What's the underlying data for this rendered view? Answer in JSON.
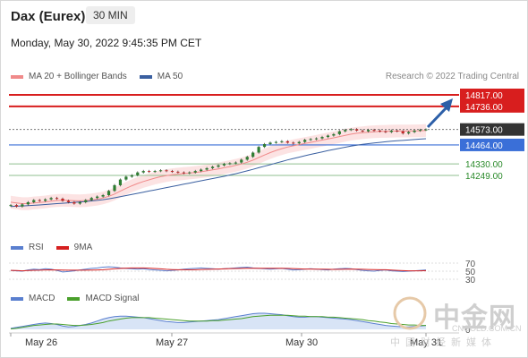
{
  "header": {
    "title": "Dax (Eurex)",
    "timeframe": "30 MIN",
    "datetime": "Monday, May 30, 2022 9:45:35 PM CET"
  },
  "legend_main": [
    {
      "label": "MA 20 + Bollinger Bands",
      "color": "#f08a8a"
    },
    {
      "label": "MA 50",
      "color": "#3a5fa0"
    }
  ],
  "credit": "Research © 2022 Trading Central",
  "legend_rsi": [
    {
      "label": "RSI",
      "color": "#5a7fcf"
    },
    {
      "label": "9MA",
      "color": "#d62020"
    }
  ],
  "legend_macd": [
    {
      "label": "MACD",
      "color": "#5a7fcf"
    },
    {
      "label": "MACD Signal",
      "color": "#4aa02c"
    }
  ],
  "watermark": {
    "cn": "中金网",
    "url": "CNGOLD.COM.CN",
    "sub": "中国财经新媒体"
  },
  "colors": {
    "resistance": "#d81e1e",
    "current": "#333333",
    "pivot": "#3a6fd8",
    "support": "#2a8a2a",
    "candle_up": "#2e7d32",
    "candle_down": "#c62828",
    "arrow": "#2c5fa8"
  },
  "chart_data": {
    "type": "candlestick",
    "title": "Dax (Eurex)",
    "interval": "30 MIN",
    "x_ticks": [
      "May 26",
      "May 27",
      "May 30",
      "May 31"
    ],
    "levels": [
      {
        "value": 14817.0,
        "label": "14817.00",
        "kind": "resistance"
      },
      {
        "value": 14736.0,
        "label": "14736.00",
        "kind": "resistance"
      },
      {
        "value": 14573.0,
        "label": "14573.00",
        "kind": "last"
      },
      {
        "value": 14464.0,
        "label": "14464.00",
        "kind": "pivot"
      },
      {
        "value": 14330.0,
        "label": "14330.00",
        "kind": "support"
      },
      {
        "value": 14249.0,
        "label": "14249.00",
        "kind": "support"
      }
    ],
    "y_scale_ref": [
      14249,
      14817
    ],
    "close_series": [
      14040,
      14030,
      14045,
      14060,
      14075,
      14070,
      14080,
      14090,
      14085,
      14070,
      14060,
      14050,
      14060,
      14075,
      14090,
      14100,
      14110,
      14140,
      14180,
      14220,
      14240,
      14250,
      14270,
      14280,
      14275,
      14280,
      14285,
      14280,
      14275,
      14270,
      14265,
      14270,
      14280,
      14290,
      14300,
      14310,
      14320,
      14330,
      14335,
      14340,
      14360,
      14380,
      14410,
      14450,
      14470,
      14480,
      14485,
      14490,
      14480,
      14475,
      14485,
      14500,
      14505,
      14510,
      14520,
      14530,
      14540,
      14560,
      14570,
      14575,
      14565,
      14560,
      14570,
      14565,
      14560,
      14555,
      14565,
      14560,
      14545,
      14555,
      14565,
      14570,
      14573
    ],
    "ma20_series": [
      14060,
      14055,
      14050,
      14050,
      14055,
      14058,
      14062,
      14068,
      14072,
      14074,
      14073,
      14071,
      14070,
      14072,
      14076,
      14082,
      14090,
      14102,
      14118,
      14138,
      14158,
      14176,
      14192,
      14206,
      14218,
      14230,
      14240,
      14248,
      14254,
      14258,
      14262,
      14266,
      14270,
      14275,
      14281,
      14288,
      14295,
      14303,
      14311,
      14320,
      14330,
      14342,
      14357,
      14375,
      14393,
      14410,
      14425,
      14438,
      14449,
      14458,
      14466,
      14474,
      14482,
      14490,
      14498,
      14506,
      14514,
      14523,
      14532,
      14540,
      14546,
      14550,
      14554,
      14557,
      14559,
      14560,
      14561,
      14562,
      14562,
      14562,
      14563,
      14564,
      14566
    ],
    "ma50_series": [
      14030,
      14032,
      14034,
      14036,
      14038,
      14041,
      14044,
      14047,
      14050,
      14053,
      14056,
      14059,
      14062,
      14065,
      14069,
      14073,
      14078,
      14084,
      14091,
      14099,
      14107,
      14115,
      14123,
      14131,
      14139,
      14147,
      14155,
      14163,
      14171,
      14179,
      14187,
      14195,
      14203,
      14211,
      14219,
      14227,
      14235,
      14243,
      14252,
      14261,
      14271,
      14281,
      14292,
      14303,
      14314,
      14325,
      14336,
      14347,
      14358,
      14368,
      14378,
      14388,
      14397,
      14406,
      14415,
      14424,
      14432,
      14440,
      14448,
      14456,
      14462,
      14468,
      14473,
      14478,
      14482,
      14486,
      14490,
      14493,
      14496,
      14499,
      14502,
      14505,
      14508
    ],
    "bollinger_width": 45,
    "rsi": {
      "levels": [
        "70",
        "50",
        "30"
      ],
      "values": [
        52,
        51,
        50,
        53,
        55,
        54,
        56,
        55,
        52,
        48,
        49,
        51,
        53,
        55,
        57,
        58,
        60,
        61,
        60,
        58,
        57,
        56,
        55,
        56,
        54,
        53,
        52,
        51,
        52,
        53,
        55,
        56,
        57,
        58,
        57,
        56,
        55,
        56,
        57,
        58,
        59,
        60,
        58,
        57,
        56,
        55,
        56,
        57,
        55,
        53,
        54,
        55,
        56,
        55,
        54,
        53,
        55,
        56,
        57,
        56,
        54,
        52,
        51,
        50,
        52,
        53,
        51,
        50,
        49,
        50,
        51,
        52,
        53
      ]
    },
    "macd": {
      "zero_label": "0",
      "macd": [
        2,
        4,
        6,
        8,
        10,
        12,
        13,
        12,
        10,
        7,
        5,
        6,
        8,
        10,
        13,
        17,
        21,
        24,
        26,
        27,
        27,
        26,
        25,
        24,
        22,
        20,
        18,
        16,
        15,
        14,
        14,
        15,
        16,
        17,
        18,
        19,
        20,
        22,
        24,
        26,
        28,
        30,
        32,
        33,
        33,
        32,
        31,
        30,
        28,
        26,
        25,
        25,
        26,
        26,
        25,
        24,
        23,
        22,
        21,
        20,
        18,
        16,
        14,
        12,
        10,
        8,
        7,
        6,
        5,
        5,
        6,
        7,
        8
      ],
      "signal": [
        1,
        2,
        4,
        6,
        8,
        9,
        10,
        11,
        11,
        10,
        9,
        8,
        8,
        9,
        10,
        12,
        14,
        17,
        19,
        21,
        23,
        24,
        24,
        24,
        24,
        23,
        22,
        21,
        20,
        19,
        18,
        17,
        17,
        17,
        17,
        18,
        18,
        19,
        20,
        21,
        22,
        24,
        26,
        27,
        28,
        29,
        29,
        29,
        29,
        28,
        27,
        27,
        26,
        26,
        26,
        25,
        25,
        24,
        23,
        22,
        21,
        20,
        18,
        17,
        15,
        14,
        12,
        11,
        10,
        9,
        9,
        8,
        8
      ]
    }
  }
}
